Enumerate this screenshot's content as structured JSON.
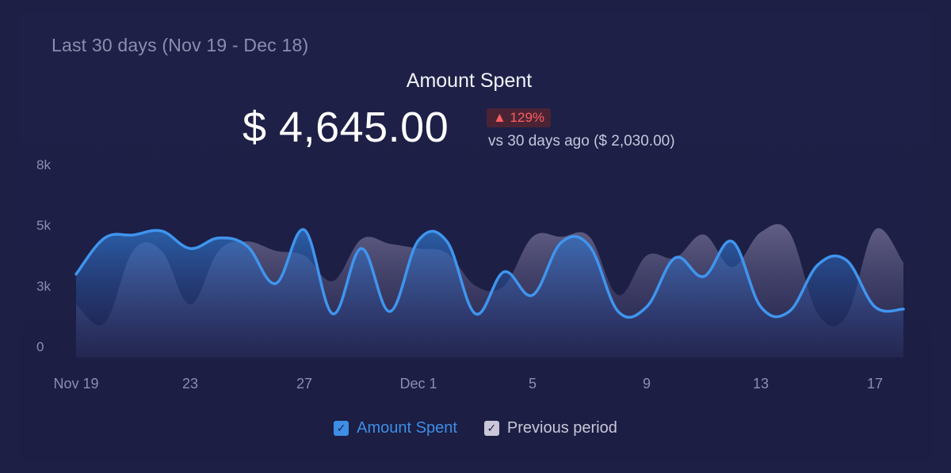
{
  "header": {
    "period": "Last 30 days (Nov 19 - Dec 18)",
    "title": "Amount Spent",
    "value": "$ 4,645.00",
    "change": "▲ 129%",
    "comparison": "vs 30 days ago ($ 2,030.00)"
  },
  "colors": {
    "current": "#3e8ee6",
    "previous": "#6e6a90",
    "badge_text": "#ff5e61",
    "axis_text": "#8b8fae"
  },
  "legend": {
    "current": "Amount Spent",
    "previous": "Previous period",
    "check_icon": "✓"
  },
  "chart_data": {
    "type": "area",
    "x": [
      "Nov 19",
      "Nov 20",
      "Nov 21",
      "Nov 22",
      "Nov 23",
      "Nov 24",
      "Nov 25",
      "Nov 26",
      "Nov 27",
      "Nov 28",
      "Nov 29",
      "Nov 30",
      "Dec 1",
      "Dec 2",
      "Dec 3",
      "Dec 4",
      "Dec 5",
      "Dec 6",
      "Dec 7",
      "Dec 8",
      "Dec 9",
      "Dec 10",
      "Dec 11",
      "Dec 12",
      "Dec 13",
      "Dec 14",
      "Dec 15",
      "Dec 16",
      "Dec 17",
      "Dec 18"
    ],
    "x_ticks": [
      "Nov 19",
      "23",
      "27",
      "Dec 1",
      "5",
      "9",
      "13",
      "17"
    ],
    "y_ticks": [
      "0",
      "3k",
      "5k",
      "8k"
    ],
    "y_tick_values": [
      0,
      2600,
      5200,
      7800
    ],
    "ylim": [
      0,
      7800
    ],
    "series": [
      {
        "name": "Amount Spent",
        "values": [
          3100,
          4650,
          4780,
          4950,
          4200,
          4650,
          4300,
          2700,
          5000,
          1400,
          4200,
          1500,
          4550,
          4500,
          1400,
          3200,
          2200,
          4450,
          4300,
          1500,
          1700,
          3800,
          3000,
          4500,
          1700,
          1500,
          3500,
          3700,
          1700,
          1600
        ]
      },
      {
        "name": "Previous period",
        "values": [
          1800,
          1000,
          4100,
          4100,
          1800,
          4100,
          4500,
          4100,
          3900,
          2800,
          4600,
          4400,
          4200,
          4000,
          2600,
          2600,
          4700,
          4700,
          4700,
          2200,
          3900,
          3800,
          4800,
          3400,
          4900,
          4900,
          1400,
          1300,
          5000,
          3600
        ]
      }
    ]
  }
}
